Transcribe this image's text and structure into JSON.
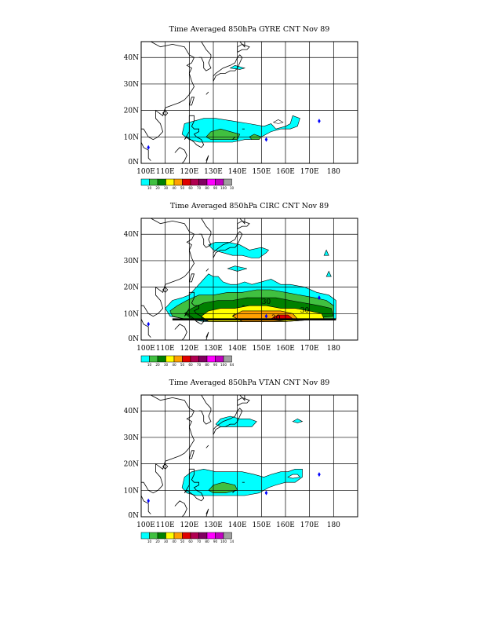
{
  "panels": [
    {
      "title": "Time Averaged 850hPa GYRE CNT Nov 89",
      "colorbar_labels": [
        "10",
        "20",
        "30",
        "40",
        "50",
        "60",
        "70",
        "80",
        "90",
        "100",
        "10"
      ]
    },
    {
      "title": "Time Averaged 850hPa CIRC CNT Nov 89",
      "colorbar_labels": [
        "10",
        "20",
        "30",
        "40",
        "50",
        "60",
        "70",
        "80",
        "90",
        "100",
        "64"
      ],
      "contour_labels": [
        "30",
        "30",
        "30"
      ]
    },
    {
      "title": "Time Averaged 850hPa VTAN CNT Nov 89",
      "colorbar_labels": [
        "10",
        "20",
        "30",
        "40",
        "50",
        "60",
        "70",
        "80",
        "90",
        "100",
        "14"
      ]
    }
  ],
  "axes": {
    "lat_labels": [
      "40N",
      "30N",
      "20N",
      "10N",
      "0N"
    ],
    "lon_labels": [
      "100E",
      "110E",
      "120E",
      "130E",
      "140E",
      "150E",
      "160E",
      "170E",
      "180"
    ]
  },
  "colors": {
    "c10": "#00ffff",
    "c20": "#40c040",
    "c30": "#008000",
    "c40": "#ffff00",
    "c50": "#ffa000",
    "c60": "#e00000",
    "c70": "#b00050",
    "c80": "#800060",
    "c90": "#ff00ff",
    "c100": "#c000c0",
    "cover": "#a0a0a0",
    "storm_marker": "#0000ff"
  },
  "chart_data": [
    {
      "type": "heatmap",
      "title": "Time Averaged 850hPa GYRE CNT Nov 89",
      "x_ticks": [
        "100E",
        "110E",
        "120E",
        "130E",
        "140E",
        "150E",
        "160E",
        "170E",
        "180"
      ],
      "y_ticks": [
        "40N",
        "30N",
        "20N",
        "10N",
        "0N"
      ],
      "xlim": [
        100,
        190
      ],
      "ylim": [
        0,
        46
      ],
      "levels": [
        10,
        20,
        30,
        40,
        50,
        60,
        70,
        80,
        90,
        100
      ],
      "grid": true,
      "regions": [
        {
          "level": 10,
          "lon_range": [
            117,
            165
          ],
          "lat_range": [
            8,
            18
          ]
        },
        {
          "level": 20,
          "lon_range": [
            127,
            142
          ],
          "lat_range": [
            9,
            13
          ]
        },
        {
          "level": 10,
          "lon_range": [
            137,
            143
          ],
          "lat_range": [
            36,
            37
          ]
        }
      ],
      "storm_markers": [
        {
          "lon": 103,
          "lat": 6
        },
        {
          "lon": 152,
          "lat": 9
        },
        {
          "lon": 174,
          "lat": 16
        }
      ]
    },
    {
      "type": "heatmap",
      "title": "Time Averaged 850hPa CIRC CNT Nov 89",
      "x_ticks": [
        "100E",
        "110E",
        "120E",
        "130E",
        "140E",
        "150E",
        "160E",
        "170E",
        "180"
      ],
      "y_ticks": [
        "40N",
        "30N",
        "20N",
        "10N",
        "0N"
      ],
      "xlim": [
        100,
        190
      ],
      "ylim": [
        0,
        46
      ],
      "levels": [
        10,
        20,
        30,
        40,
        50,
        60,
        70,
        80,
        90,
        100
      ],
      "grid": true,
      "regions": [
        {
          "level": 10,
          "lon_range": [
            110,
            181
          ],
          "lat_range": [
            7,
            25
          ]
        },
        {
          "level": 20,
          "lon_range": [
            112,
            181
          ],
          "lat_range": [
            7,
            17
          ]
        },
        {
          "level": 30,
          "lon_range": [
            118,
            180
          ],
          "lat_range": [
            7,
            15
          ]
        },
        {
          "level": 40,
          "lon_range": [
            125,
            176
          ],
          "lat_range": [
            7,
            12
          ]
        },
        {
          "level": 50,
          "lon_range": [
            138,
            165
          ],
          "lat_range": [
            7,
            11
          ]
        },
        {
          "level": 60,
          "lon_range": [
            155,
            163
          ],
          "lat_range": [
            7,
            9
          ]
        }
      ],
      "contour_labels": [
        "30",
        "30",
        "30"
      ],
      "storm_markers": [
        {
          "lon": 103,
          "lat": 6
        },
        {
          "lon": 152,
          "lat": 9
        },
        {
          "lon": 174,
          "lat": 16
        }
      ]
    },
    {
      "type": "heatmap",
      "title": "Time Averaged 850hPa VTAN CNT Nov 89",
      "x_ticks": [
        "100E",
        "110E",
        "120E",
        "130E",
        "140E",
        "150E",
        "160E",
        "170E",
        "180"
      ],
      "y_ticks": [
        "40N",
        "30N",
        "20N",
        "10N",
        "0N"
      ],
      "xlim": [
        100,
        190
      ],
      "ylim": [
        0,
        46
      ],
      "levels": [
        10,
        20,
        30,
        40,
        50,
        60,
        70,
        80,
        90,
        100
      ],
      "grid": true,
      "regions": [
        {
          "level": 10,
          "lon_range": [
            117,
            167
          ],
          "lat_range": [
            8,
            19
          ]
        },
        {
          "level": 20,
          "lon_range": [
            129,
            140
          ],
          "lat_range": [
            9,
            13
          ]
        },
        {
          "level": 10,
          "lon_range": [
            132,
            148
          ],
          "lat_range": [
            33,
            38
          ]
        }
      ],
      "storm_markers": [
        {
          "lon": 103,
          "lat": 6
        },
        {
          "lon": 152,
          "lat": 9
        },
        {
          "lon": 174,
          "lat": 16
        }
      ]
    }
  ]
}
